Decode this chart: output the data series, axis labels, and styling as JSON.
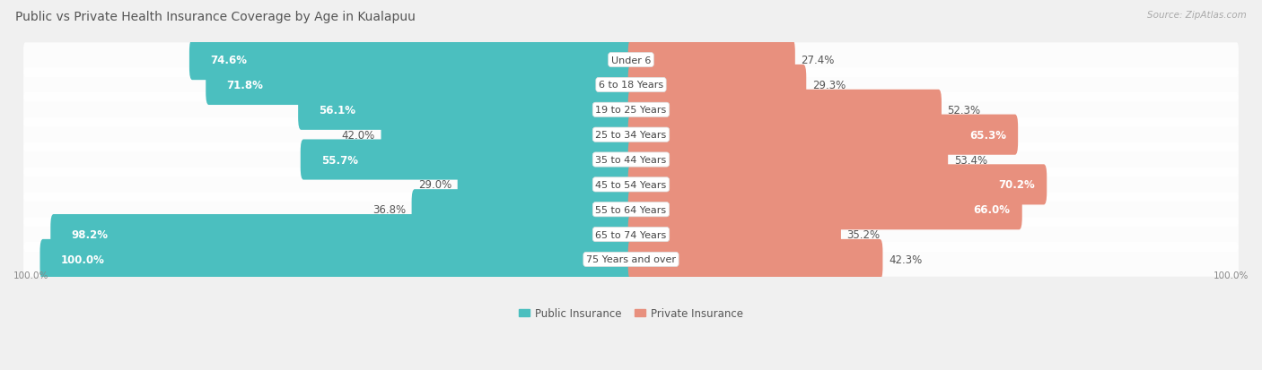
{
  "title": "Public vs Private Health Insurance Coverage by Age in Kualapuu",
  "source": "Source: ZipAtlas.com",
  "categories": [
    "Under 6",
    "6 to 18 Years",
    "19 to 25 Years",
    "25 to 34 Years",
    "35 to 44 Years",
    "45 to 54 Years",
    "55 to 64 Years",
    "65 to 74 Years",
    "75 Years and over"
  ],
  "public_values": [
    74.6,
    71.8,
    56.1,
    42.0,
    55.7,
    29.0,
    36.8,
    98.2,
    100.0
  ],
  "private_values": [
    27.4,
    29.3,
    52.3,
    65.3,
    53.4,
    70.2,
    66.0,
    35.2,
    42.3
  ],
  "public_color": "#4bbfbf",
  "private_color": "#e8907e",
  "bg_color": "#f0f0f0",
  "row_bg_light": "#e8e8e8",
  "row_bg_white": "#f7f7f7",
  "title_fontsize": 10,
  "label_fontsize": 8.5,
  "source_fontsize": 7.5,
  "bar_height": 0.62,
  "legend_public": "Public Insurance",
  "legend_private": "Private Insurance",
  "axis_label": "100.0%"
}
